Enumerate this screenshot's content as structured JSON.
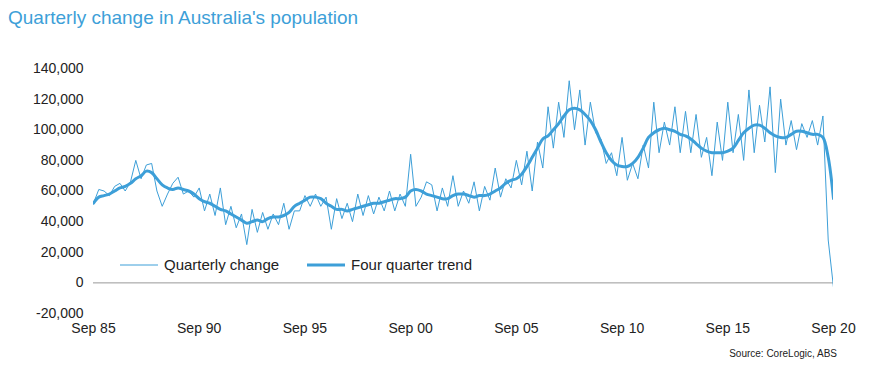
{
  "chart_data": {
    "type": "line",
    "title": "Quarterly change in Australia's population",
    "source": "Source: CoreLogic, ABS",
    "legend": "lower left",
    "grid": false,
    "categories": [
      "Sep 85",
      null,
      null,
      null,
      null,
      null,
      null,
      null,
      null,
      null,
      null,
      null,
      null,
      null,
      null,
      null,
      null,
      null,
      null,
      null,
      "Sep 90",
      null,
      null,
      null,
      null,
      null,
      null,
      null,
      null,
      null,
      null,
      null,
      null,
      null,
      null,
      null,
      null,
      null,
      null,
      null,
      "Sep 95",
      null,
      null,
      null,
      null,
      null,
      null,
      null,
      null,
      null,
      null,
      null,
      null,
      null,
      null,
      null,
      null,
      null,
      null,
      null,
      "Sep 00",
      null,
      null,
      null,
      null,
      null,
      null,
      null,
      null,
      null,
      null,
      null,
      null,
      null,
      null,
      null,
      null,
      null,
      null,
      null,
      "Sep 05",
      null,
      null,
      null,
      null,
      null,
      null,
      null,
      null,
      null,
      null,
      null,
      null,
      null,
      null,
      null,
      null,
      null,
      null,
      null,
      "Sep 10",
      null,
      null,
      null,
      null,
      null,
      null,
      null,
      null,
      null,
      null,
      null,
      null,
      null,
      null,
      null,
      null,
      null,
      null,
      null,
      "Sep 15",
      null,
      null,
      null,
      null,
      null,
      null,
      null,
      null,
      null,
      null,
      null,
      null,
      null,
      null,
      null,
      null,
      null,
      null,
      null,
      "Sep 20"
    ],
    "ylim": [
      -20000,
      140000
    ],
    "yticks": [
      {
        "value": -20000,
        "label": "-20,000"
      },
      0,
      {
        "value": 20000,
        "label": "20,000"
      },
      {
        "value": 40000,
        "label": "40,000"
      },
      {
        "value": 60000,
        "label": "60,000"
      },
      {
        "value": 80000,
        "label": "80,000"
      },
      {
        "value": 100000,
        "label": "100,000"
      },
      {
        "value": 120000,
        "label": "120,000"
      },
      {
        "value": 140000,
        "label": "140,000"
      }
    ],
    "series": [
      {
        "name": "Quarterly change",
        "color": "#3d9fd8",
        "line_style": "thin",
        "values": [
          52000,
          61000,
          60000,
          57000,
          63000,
          65000,
          60000,
          66000,
          80000,
          68000,
          77000,
          78000,
          60000,
          50000,
          58000,
          65000,
          69000,
          58000,
          60000,
          56000,
          62000,
          47000,
          58000,
          44000,
          62000,
          38000,
          50000,
          36000,
          45000,
          25000,
          48000,
          33000,
          46000,
          35000,
          45000,
          38000,
          52000,
          35000,
          47000,
          47000,
          57000,
          50000,
          58000,
          50000,
          56000,
          35000,
          55000,
          42000,
          52000,
          40000,
          58000,
          44000,
          57000,
          45000,
          56000,
          47000,
          60000,
          47000,
          58000,
          50000,
          84000,
          50000,
          56000,
          66000,
          64000,
          47000,
          62000,
          50000,
          70000,
          50000,
          60000,
          52000,
          66000,
          47000,
          63000,
          54000,
          75000,
          56000,
          68000,
          62000,
          80000,
          64000,
          86000,
          60000,
          92000,
          75000,
          115000,
          88000,
          118000,
          95000,
          132000,
          100000,
          126000,
          90000,
          118000,
          98000,
          94000,
          78000,
          85000,
          70000,
          95000,
          67000,
          78000,
          68000,
          90000,
          75000,
          118000,
          85000,
          105000,
          90000,
          115000,
          85000,
          112000,
          85000,
          110000,
          82000,
          95000,
          70000,
          105000,
          80000,
          118000,
          85000,
          110000,
          80000,
          126000,
          85000,
          116000,
          92000,
          128000,
          72000,
          120000,
          90000,
          106000,
          87000,
          104000,
          95000,
          106000,
          90000,
          109000,
          28000,
          -3000
        ]
      },
      {
        "name": "Four quarter trend",
        "color": "#3d9fd8",
        "line_style": "thick",
        "values": [
          52000,
          56000,
          57000,
          58000,
          60000,
          62000,
          63000,
          65000,
          68000,
          70000,
          73000,
          72000,
          68000,
          64000,
          62000,
          61000,
          62000,
          61000,
          60000,
          58000,
          55000,
          53000,
          52000,
          50000,
          48000,
          47000,
          45000,
          43000,
          41000,
          39000,
          40000,
          41000,
          40000,
          42000,
          43000,
          43000,
          44000,
          46000,
          50000,
          52000,
          54000,
          56000,
          56000,
          55000,
          52000,
          50000,
          48000,
          48000,
          47000,
          48000,
          49000,
          50000,
          51000,
          52000,
          52000,
          53000,
          54000,
          55000,
          55000,
          56000,
          60000,
          61000,
          60000,
          58000,
          57000,
          56000,
          55000,
          55000,
          57000,
          58000,
          58000,
          57000,
          56000,
          57000,
          57000,
          58000,
          60000,
          62000,
          65000,
          67000,
          68000,
          71000,
          76000,
          82000,
          88000,
          94000,
          96000,
          100000,
          104000,
          109000,
          113000,
          114000,
          113000,
          110000,
          106000,
          100000,
          92000,
          85000,
          80000,
          77000,
          76000,
          76000,
          78000,
          82000,
          88000,
          95000,
          98000,
          100000,
          101000,
          100000,
          99000,
          97000,
          96000,
          94000,
          91000,
          88000,
          86000,
          85000,
          85000,
          85000,
          86000,
          88000,
          93000,
          98000,
          101000,
          103000,
          103000,
          101000,
          98000,
          96000,
          95000,
          95000,
          97000,
          99000,
          99000,
          98000,
          97000,
          97000,
          95000,
          82000,
          55000
        ]
      }
    ]
  }
}
